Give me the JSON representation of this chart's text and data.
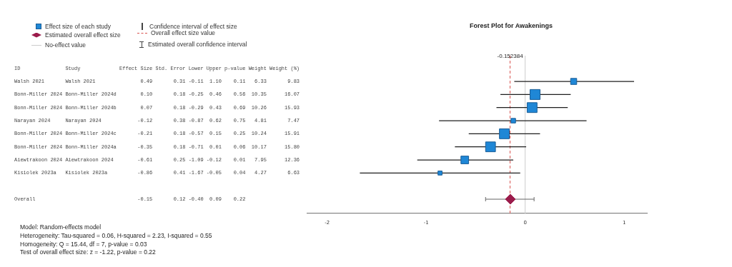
{
  "chart_data": {
    "type": "bubble",
    "orientation": "horizontal",
    "title": "Forest Plot for Awakenings",
    "categories": [
      "Walsh 2021       Walsh 2021               0.49       0.31 -0.11  1.10    0.11   6.33       9.83",
      "Bonn-Miller 2024 Bonn-Miller 2024d        0.10       0.18 -0.25  0.46    0.56  10.35      16.07",
      "Bonn-Miller 2024 Bonn-Miller 2024b        0.07       0.18 -0.29  0.43    0.69  10.26      15.93",
      "Narayan 2024     Narayan 2024            -0.12       0.38 -0.87  0.62    0.75   4.81       7.47",
      "Bonn-Miller 2024 Bonn-Miller 2024c       -0.21       0.18 -0.57  0.15    0.25  10.24      15.91",
      "Bonn-Miller 2024 Bonn-Miller 2024a       -0.35       0.18 -0.71  0.01    0.06  10.17      15.80",
      "Aiewtrakoon 2024 Aiewtrakoon 2024        -0.61       0.25 -1.09 -0.12    0.01   7.95      12.36",
      "Kisiolek 2023a   Kisiolek 2023a          -0.86       0.41 -1.67 -0.05    0.04   4.27       6.63",
      null,
      "Overall                                  -0.15       0.12 -0.40  0.09    0.22"
    ],
    "series": [
      {
        "name": "Effect size of each study",
        "type": "bubble",
        "marker": "square",
        "color": "#1f87d6",
        "values": [
          0.49,
          0.1,
          0.07,
          -0.12,
          -0.21,
          -0.35,
          -0.61,
          -0.86,
          null,
          null
        ],
        "sizes": [
          0.37,
          1,
          0.98,
          0.21,
          0.98,
          0.97,
          0.59,
          0.17,
          null,
          null
        ],
        "errors": [
          [
            -0.11,
            1.1
          ],
          [
            -0.25,
            0.46
          ],
          [
            -0.29,
            0.43
          ],
          [
            -0.87,
            0.62
          ],
          [
            -0.57,
            0.15
          ],
          [
            -0.71,
            0.01
          ],
          [
            -1.09,
            -0.12
          ],
          [
            -1.67,
            -0.05
          ],
          null,
          null
        ]
      },
      {
        "name": "Estimated overall effect size",
        "type": "scatter",
        "marker": "diamond",
        "color": "#9b1b4b",
        "values": [
          null,
          null,
          null,
          null,
          null,
          null,
          null,
          null,
          null,
          -0.15
        ],
        "errors": [
          null,
          null,
          null,
          null,
          null,
          null,
          null,
          null,
          null,
          [
            -0.4,
            0.09
          ]
        ]
      }
    ],
    "xlim": [
      -2.2,
      1.23
    ],
    "xticks": [
      -2,
      -1,
      0,
      1
    ],
    "grid": false,
    "legend": "top left",
    "ref_lines": [
      {
        "axis": "x",
        "value": -0.152384,
        "label": "Overall effect size value",
        "color": "#d9534f",
        "line_style": "dashed"
      },
      {
        "axis": "x",
        "value": 0,
        "label": "No-effect value",
        "color": "#cccccc",
        "line_style": "solid"
      }
    ],
    "annotations": [
      "ID               Study             Effect Size Std. Error Lower Upper p-value Weight Weight (%)",
      {
        "text": "-0.152384",
        "x": -0.152384
      },
      "Confidence interval of effect size",
      "Estimated overall confidence interval",
      "Model: Random-effects model",
      "Heterogeneity: Tau-squared = 0.06, H-squared = 2.23, I-squared = 0.55",
      "Homogeneity: Q = 15.44, df = 7, p-value = 0.03",
      "Test of overall effect size: z = -1.22, p-value = 0.22"
    ]
  }
}
